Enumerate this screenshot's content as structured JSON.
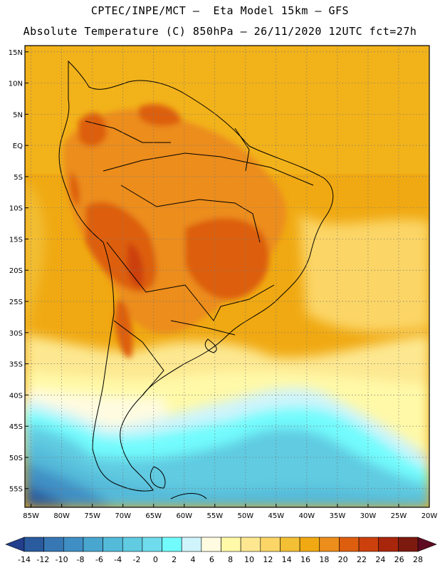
{
  "header": {
    "line1": "CPTEC/INPE/MCT –  Eta Model 15km – GFS",
    "line2": "Absolute Temperature (C) 850hPa – 26/11/2020 12UTC fct=27h"
  },
  "map": {
    "lat_labels": [
      "15N",
      "10N",
      "5N",
      "EQ",
      "5S",
      "10S",
      "15S",
      "20S",
      "25S",
      "30S",
      "35S",
      "40S",
      "45S",
      "50S",
      "55S"
    ],
    "lon_labels": [
      "85W",
      "80W",
      "75W",
      "70W",
      "65W",
      "60W",
      "55W",
      "50W",
      "45W",
      "40W",
      "35W",
      "30W",
      "25W",
      "20W"
    ],
    "lat_range": [
      16,
      -58
    ],
    "lon_range": [
      -86,
      -20
    ]
  },
  "colorbar": {
    "labels": [
      "-14",
      "-12",
      "-10",
      "-8",
      "-6",
      "-4",
      "-2",
      "0",
      "2",
      "4",
      "6",
      "8",
      "10",
      "12",
      "14",
      "16",
      "18",
      "20",
      "22",
      "24",
      "26",
      "28"
    ],
    "colors": [
      "#223e8c",
      "#2a5b9e",
      "#3777b3",
      "#3f8fc4",
      "#49a6cf",
      "#54bad9",
      "#60cbe1",
      "#6fdced",
      "#72fbfd",
      "#cff4fb",
      "#fffbe0",
      "#fff9a8",
      "#fde891",
      "#fbd566",
      "#f2bf35",
      "#f0a912",
      "#ec8d1c",
      "#dd5e0e",
      "#cc400d",
      "#a8260b",
      "#7c1a0f",
      "#5e0b22"
    ]
  }
}
